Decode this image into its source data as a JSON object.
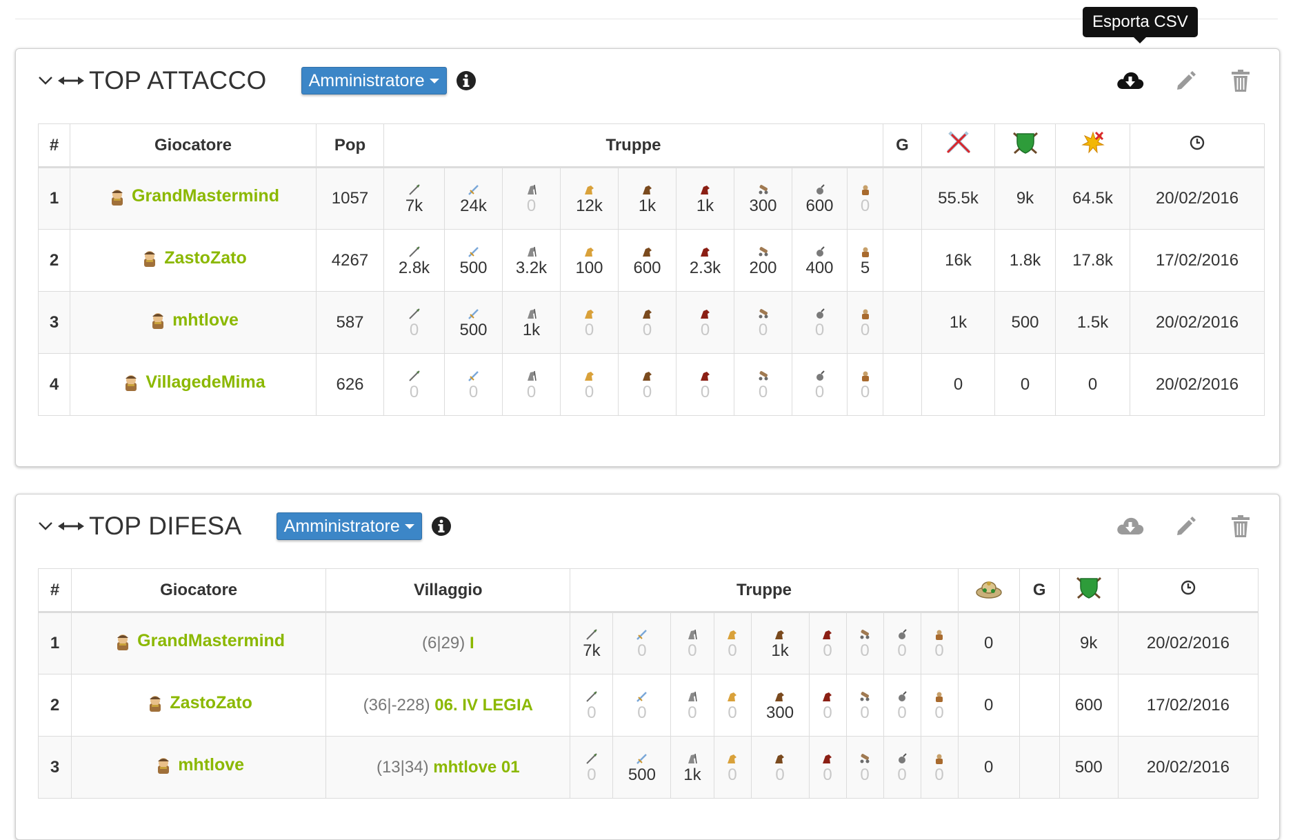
{
  "tooltip": "Esporta CSV",
  "attack": {
    "title": "TOP ATTACCO",
    "role_label": "Amministratore",
    "headers": {
      "rank": "#",
      "player": "Giocatore",
      "pop": "Pop",
      "troops": "Truppe",
      "g": "G"
    },
    "rows": [
      {
        "rank": "1",
        "player": "GrandMastermind",
        "pop": "1057",
        "troops": [
          "7k",
          "24k",
          "0",
          "12k",
          "1k",
          "1k",
          "300",
          "600",
          "0"
        ],
        "g": "",
        "off": "55.5k",
        "def": "9k",
        "total": "64.5k",
        "date": "20/02/2016"
      },
      {
        "rank": "2",
        "player": "ZastoZato",
        "pop": "4267",
        "troops": [
          "2.8k",
          "500",
          "3.2k",
          "100",
          "600",
          "2.3k",
          "200",
          "400",
          "5"
        ],
        "g": "",
        "off": "16k",
        "def": "1.8k",
        "total": "17.8k",
        "date": "17/02/2016"
      },
      {
        "rank": "3",
        "player": "mhtlove",
        "pop": "587",
        "troops": [
          "0",
          "500",
          "1k",
          "0",
          "0",
          "0",
          "0",
          "0",
          "0"
        ],
        "g": "",
        "off": "1k",
        "def": "500",
        "total": "1.5k",
        "date": "20/02/2016"
      },
      {
        "rank": "4",
        "player": "VillagedeMima",
        "pop": "626",
        "troops": [
          "0",
          "0",
          "0",
          "0",
          "0",
          "0",
          "0",
          "0",
          "0"
        ],
        "g": "",
        "off": "0",
        "def": "0",
        "total": "0",
        "date": "20/02/2016"
      }
    ]
  },
  "defense": {
    "title": "TOP DIFESA",
    "role_label": "Amministratore",
    "headers": {
      "rank": "#",
      "player": "Giocatore",
      "village": "Villaggio",
      "troops": "Truppe",
      "g": "G"
    },
    "rows": [
      {
        "rank": "1",
        "player": "GrandMastermind",
        "coord": "(6|29)",
        "village": "I",
        "troops": [
          "7k",
          "0",
          "0",
          "0",
          "1k",
          "0",
          "0",
          "0",
          "0"
        ],
        "res": "0",
        "g": "",
        "def": "9k",
        "date": "20/02/2016"
      },
      {
        "rank": "2",
        "player": "ZastoZato",
        "coord": "(36|-228)",
        "village": "06. IV LEGIA",
        "troops": [
          "0",
          "0",
          "0",
          "0",
          "300",
          "0",
          "0",
          "0",
          "0"
        ],
        "res": "0",
        "g": "",
        "def": "600",
        "date": "17/02/2016"
      },
      {
        "rank": "3",
        "player": "mhtlove",
        "coord": "(13|34)",
        "village": "mhtlove 01",
        "troops": [
          "0",
          "500",
          "1k",
          "0",
          "0",
          "0",
          "0",
          "0",
          "0"
        ],
        "res": "0",
        "g": "",
        "def": "500",
        "date": "20/02/2016"
      }
    ]
  },
  "colors": {
    "player_link": "#8bb800",
    "role_button": "#3c86c7",
    "zero_value": "#c8c8c8"
  },
  "icons": [
    "chevron-down-icon",
    "resize-arrows-icon",
    "info-icon",
    "cloud-download-icon",
    "pencil-icon",
    "trash-icon",
    "clock-icon",
    "swords-icon",
    "shield-icon",
    "explosion-icon",
    "loot-bag-icon"
  ]
}
